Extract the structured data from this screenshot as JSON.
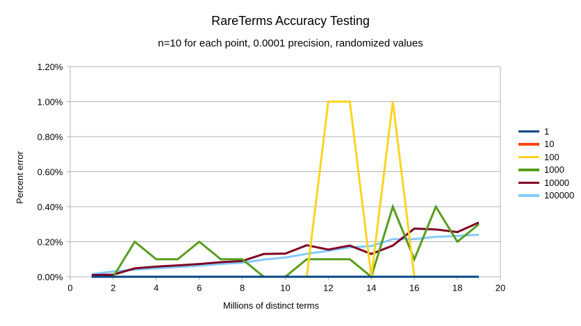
{
  "chart_data": {
    "type": "line",
    "title": "RareTerms Accuracy Testing",
    "subtitle": "n=10 for each point, 0.0001 precision, randomized values",
    "xlabel": "Millions of distinct terms",
    "ylabel": "Percent error",
    "xlim": [
      0,
      20
    ],
    "ylim": [
      0,
      1.2
    ],
    "x_tick_values": [
      0,
      2,
      4,
      6,
      8,
      10,
      12,
      14,
      16,
      18,
      20
    ],
    "x_tick_labels": [
      "0",
      "2",
      "4",
      "6",
      "8",
      "10",
      "12",
      "14",
      "16",
      "18",
      "20"
    ],
    "y_tick_values": [
      0,
      0.2,
      0.4,
      0.6,
      0.8,
      1.0,
      1.2
    ],
    "y_tick_labels": [
      "0.00%",
      "0.20%",
      "0.40%",
      "0.60%",
      "0.80%",
      "1.00%",
      "1.20%"
    ],
    "grid": "horizontal",
    "legend_position": "right",
    "x": [
      1,
      2,
      3,
      4,
      5,
      6,
      7,
      8,
      9,
      10,
      11,
      12,
      13,
      14,
      15,
      16,
      17,
      18,
      19
    ],
    "series": [
      {
        "name": "1",
        "color": "#004586",
        "values": [
          0,
          0,
          0,
          0,
          0,
          0,
          0,
          0,
          0,
          0,
          0,
          0,
          0,
          0,
          0,
          0,
          0,
          0,
          0
        ]
      },
      {
        "name": "10",
        "color": "#ff420e",
        "values": [
          0,
          0,
          0,
          0,
          0,
          0,
          0,
          0,
          0,
          0,
          0,
          0,
          0,
          0,
          0,
          0,
          0,
          0,
          0
        ]
      },
      {
        "name": "100",
        "color": "#ffd320",
        "values": [
          0,
          0,
          0,
          0,
          0,
          0,
          0,
          0,
          0,
          0,
          0,
          1.0,
          1.0,
          0,
          1.0,
          0,
          0,
          0,
          0
        ]
      },
      {
        "name": "1000",
        "color": "#579d1c",
        "values": [
          0,
          0,
          0.2,
          0.1,
          0.1,
          0.2,
          0.1,
          0.1,
          0,
          0,
          0.1,
          0.1,
          0.1,
          0,
          0.4,
          0.1,
          0.4,
          0.2,
          0.3
        ]
      },
      {
        "name": "10000",
        "color": "#7e0021",
        "values": [
          0.01,
          0.012,
          0.048,
          0.058,
          0.065,
          0.073,
          0.083,
          0.09,
          0.13,
          0.132,
          0.18,
          0.155,
          0.178,
          0.13,
          0.178,
          0.275,
          0.27,
          0.255,
          0.31
        ]
      },
      {
        "name": "100000",
        "color": "#83caff",
        "values": [
          0.015,
          0.03,
          0.04,
          0.048,
          0.055,
          0.063,
          0.073,
          0.08,
          0.098,
          0.11,
          0.131,
          0.148,
          0.168,
          0.175,
          0.215,
          0.215,
          0.228,
          0.233,
          0.24
        ]
      }
    ],
    "colors": {
      "grid": "#b3b3b3",
      "axis": "#b3b3b3",
      "text": "#000000",
      "background": "#ffffff"
    }
  }
}
